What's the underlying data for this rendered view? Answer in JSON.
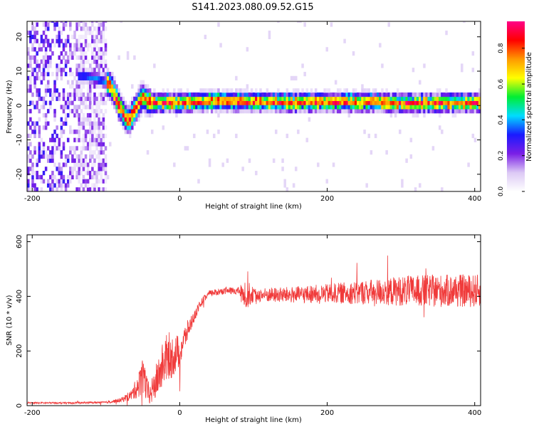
{
  "title": "S141.2023.080.09.52.G15",
  "colors": {
    "snr_line": "#f03a3a",
    "frame": "#000000"
  },
  "chart_data": [
    {
      "type": "heatmap",
      "xlabel": "Height of straight line (km)",
      "ylabel": "Frequency (Hz)",
      "xlim": [
        -207,
        408
      ],
      "ylim": [
        -25,
        24.5
      ],
      "xticks": [
        -200,
        0,
        200,
        400
      ],
      "yticks": [
        -20,
        -10,
        0,
        10,
        20
      ],
      "colorbar": {
        "label": "Normalized spectral amplitude",
        "range": [
          0,
          0.95
        ],
        "ticks": [
          "0.0",
          "0.2",
          "0.4",
          "0.6",
          "0.8"
        ],
        "tick_values": [
          0,
          0.2,
          0.4,
          0.6,
          0.8
        ],
        "stops": [
          "#ffffff",
          "#dcc9f5",
          "#7a1fe6",
          "#1a1aff",
          "#00dcff",
          "#00ee33",
          "#ffff00",
          "#ff9900",
          "#ff0000",
          "#ff0088"
        ]
      },
      "ridge": {
        "x": [
          -130,
          -110,
          -100,
          -95,
          -90,
          -85,
          -80,
          -75,
          -70,
          -65,
          -60,
          -55,
          -50,
          -45,
          -40,
          -20,
          0,
          50,
          100,
          150,
          200,
          250,
          300,
          350,
          400,
          408
        ],
        "y": [
          8,
          7,
          6,
          5,
          3,
          0,
          -2,
          -4,
          -5,
          -3,
          -1,
          1,
          2,
          0.5,
          0.2,
          0.3,
          0.3,
          0.8,
          0.6,
          0.4,
          0.5,
          0.6,
          0.1,
          0.2,
          0.3,
          0.3
        ]
      }
    },
    {
      "type": "line",
      "xlabel": "Height of straight line (km)",
      "ylabel": "SNR (10 * v/v)",
      "xlim": [
        -207,
        408
      ],
      "ylim": [
        0,
        625
      ],
      "xticks": [
        -200,
        0,
        200,
        400
      ],
      "yticks": [
        0,
        200,
        400,
        600
      ],
      "series": [
        {
          "envelope_x": [
            -207,
            -150,
            -100,
            -80,
            -65,
            -55,
            -50,
            -45,
            -40,
            -30,
            -20,
            -10,
            0,
            10,
            20,
            30,
            40,
            60,
            80,
            90,
            100,
            150,
            200,
            250,
            300,
            350,
            408
          ],
          "envelope_y": [
            10,
            10,
            12,
            20,
            40,
            80,
            130,
            60,
            40,
            100,
            170,
            180,
            200,
            270,
            330,
            380,
            410,
            420,
            420,
            410,
            405,
            405,
            410,
            415,
            420,
            420,
            420
          ],
          "noise_amp": [
            3,
            3,
            4,
            8,
            20,
            50,
            90,
            50,
            40,
            70,
            90,
            80,
            60,
            40,
            20,
            15,
            12,
            12,
            14,
            60,
            25,
            30,
            35,
            45,
            55,
            60,
            60
          ]
        }
      ]
    }
  ]
}
